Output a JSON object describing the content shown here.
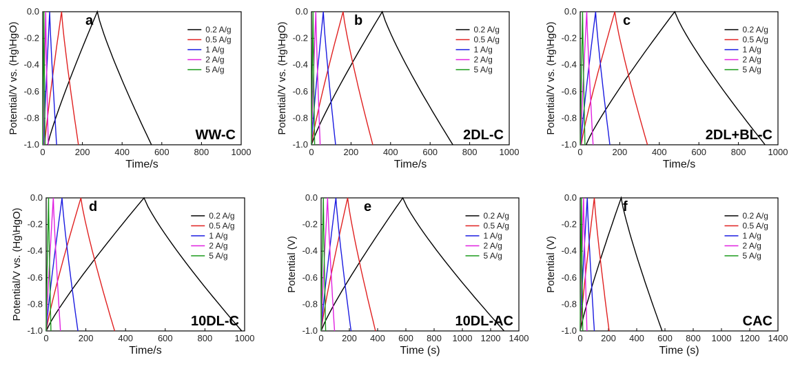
{
  "chart_data": [
    {
      "type": "line",
      "panel": "a",
      "sample": "WW-C",
      "xlabel": "Time/s",
      "ylabel": "Potential/V vs. (Hg\\HgO)",
      "xlim": [
        0,
        1000
      ],
      "ylim": [
        -1.0,
        0.0
      ],
      "xticks": [
        "0",
        "200",
        "400",
        "600",
        "800",
        "1000"
      ],
      "yticks": [
        "0.0",
        "-0.2",
        "-0.4",
        "-0.6",
        "-0.8",
        "-1.0"
      ],
      "legend": "top-right",
      "series": [
        {
          "name": "0.2 A/g",
          "color": "#000000",
          "x": [
            25,
            275,
            548
          ]
        },
        {
          "name": "0.5 A/g",
          "color": "#e02020",
          "x": [
            10,
            95,
            180
          ]
        },
        {
          "name": "1 A/g",
          "color": "#1a1ae0",
          "x": [
            5,
            35,
            70
          ]
        },
        {
          "name": "2 A/g",
          "color": "#e020e0",
          "x": [
            3,
            15,
            28
          ]
        },
        {
          "name": "5 A/g",
          "color": "#1a9a1a",
          "x": [
            1,
            6,
            12
          ]
        }
      ]
    },
    {
      "type": "line",
      "panel": "b",
      "sample": "2DL-C",
      "xlabel": "Time/s",
      "ylabel": "Potential/V vs. (Hg\\HgO)",
      "xlim": [
        0,
        1000
      ],
      "ylim": [
        -1.0,
        0.0
      ],
      "xticks": [
        "0",
        "200",
        "400",
        "600",
        "800",
        "1000"
      ],
      "yticks": [
        "0.0",
        "-0.2",
        "-0.4",
        "-0.6",
        "-0.8",
        "-1.0"
      ],
      "legend": "top-right",
      "series": [
        {
          "name": "0.2 A/g",
          "color": "#000000",
          "x": [
            0,
            358,
            715
          ]
        },
        {
          "name": "0.5 A/g",
          "color": "#e02020",
          "x": [
            0,
            160,
            310
          ]
        },
        {
          "name": "1 A/g",
          "color": "#1a1ae0",
          "x": [
            0,
            60,
            122
          ]
        },
        {
          "name": "2 A/g",
          "color": "#e020e0",
          "x": [
            0,
            22,
            44
          ]
        },
        {
          "name": "5 A/g",
          "color": "#1a9a1a",
          "x": [
            0,
            8,
            16
          ]
        }
      ]
    },
    {
      "type": "line",
      "panel": "c",
      "sample": "2DL+BL-C",
      "xlabel": "Time/s",
      "ylabel": "Potential/V vs. (Hg\\HgO)",
      "xlim": [
        0,
        1000
      ],
      "ylim": [
        -1.0,
        0.0
      ],
      "xticks": [
        "0",
        "200",
        "400",
        "600",
        "800",
        "1000"
      ],
      "yticks": [
        "0.0",
        "-0.2",
        "-0.4",
        "-0.6",
        "-0.8",
        "-1.0"
      ],
      "legend": "top-right",
      "series": [
        {
          "name": "0.2 A/g",
          "color": "#000000",
          "x": [
            30,
            478,
            935
          ]
        },
        {
          "name": "0.5 A/g",
          "color": "#e02020",
          "x": [
            5,
            175,
            340
          ]
        },
        {
          "name": "1 A/g",
          "color": "#1a1ae0",
          "x": [
            3,
            78,
            150
          ]
        },
        {
          "name": "2 A/g",
          "color": "#e020e0",
          "x": [
            2,
            33,
            65
          ]
        },
        {
          "name": "5 A/g",
          "color": "#1a9a1a",
          "x": [
            1,
            12,
            24
          ]
        }
      ]
    },
    {
      "type": "line",
      "panel": "d",
      "sample": "10DL-C",
      "xlabel": "Time/s",
      "ylabel": "Potential/V vs. (Hg\\HgO)",
      "xlim": [
        0,
        1000
      ],
      "ylim": [
        -1.0,
        0.0
      ],
      "xticks": [
        "0",
        "200",
        "400",
        "600",
        "800",
        "1000"
      ],
      "yticks": [
        "0.0",
        "-0.2",
        "-0.4",
        "-0.6",
        "-0.8",
        "-1.0"
      ],
      "legend": "top-right",
      "series": [
        {
          "name": "0.2 A/g",
          "color": "#000000",
          "x": [
            0,
            493,
            985
          ]
        },
        {
          "name": "0.5 A/g",
          "color": "#e02020",
          "x": [
            0,
            175,
            345
          ]
        },
        {
          "name": "1 A/g",
          "color": "#1a1ae0",
          "x": [
            0,
            80,
            160
          ]
        },
        {
          "name": "2 A/g",
          "color": "#e020e0",
          "x": [
            0,
            36,
            72
          ]
        },
        {
          "name": "5 A/g",
          "color": "#1a9a1a",
          "x": [
            0,
            12,
            24
          ]
        }
      ]
    },
    {
      "type": "line",
      "panel": "e",
      "sample": "10DL-AC",
      "xlabel": "Time (s)",
      "ylabel": "Potential (V)",
      "xlim": [
        0,
        1400
      ],
      "ylim": [
        -1.0,
        0.0
      ],
      "xticks": [
        "0",
        "200",
        "400",
        "600",
        "800",
        "1000",
        "1200",
        "1400"
      ],
      "yticks": [
        "0.0",
        "-0.2",
        "-0.4",
        "-0.6",
        "-0.8",
        "-1.0"
      ],
      "legend": "top-right",
      "series": [
        {
          "name": "0.2 A/g",
          "color": "#000000",
          "x": [
            0,
            578,
            1295
          ]
        },
        {
          "name": "0.5 A/g",
          "color": "#e02020",
          "x": [
            0,
            188,
            385
          ]
        },
        {
          "name": "1 A/g",
          "color": "#1a1ae0",
          "x": [
            0,
            105,
            212
          ]
        },
        {
          "name": "2 A/g",
          "color": "#e020e0",
          "x": [
            0,
            46,
            95
          ]
        },
        {
          "name": "5 A/g",
          "color": "#1a9a1a",
          "x": [
            0,
            16,
            32
          ]
        }
      ]
    },
    {
      "type": "line",
      "panel": "f",
      "sample": "CAC",
      "xlabel": "Time (s)",
      "ylabel": "Potential (V)",
      "xlim": [
        0,
        1400
      ],
      "ylim": [
        -1.0,
        0.0
      ],
      "xticks": [
        "0",
        "200",
        "400",
        "600",
        "800",
        "1000",
        "1200",
        "1400"
      ],
      "yticks": [
        "0.0",
        "-0.2",
        "-0.4",
        "-0.6",
        "-0.8",
        "-1.0"
      ],
      "legend": "top-right",
      "series": [
        {
          "name": "0.2 A/g",
          "color": "#000000",
          "x": [
            0,
            290,
            580
          ]
        },
        {
          "name": "0.5 A/g",
          "color": "#e02020",
          "x": [
            0,
            100,
            205
          ]
        },
        {
          "name": "1 A/g",
          "color": "#1a1ae0",
          "x": [
            0,
            50,
            100
          ]
        },
        {
          "name": "2 A/g",
          "color": "#e020e0",
          "x": [
            0,
            24,
            48
          ]
        },
        {
          "name": "5 A/g",
          "color": "#1a9a1a",
          "x": [
            0,
            9,
            18
          ]
        }
      ]
    }
  ]
}
